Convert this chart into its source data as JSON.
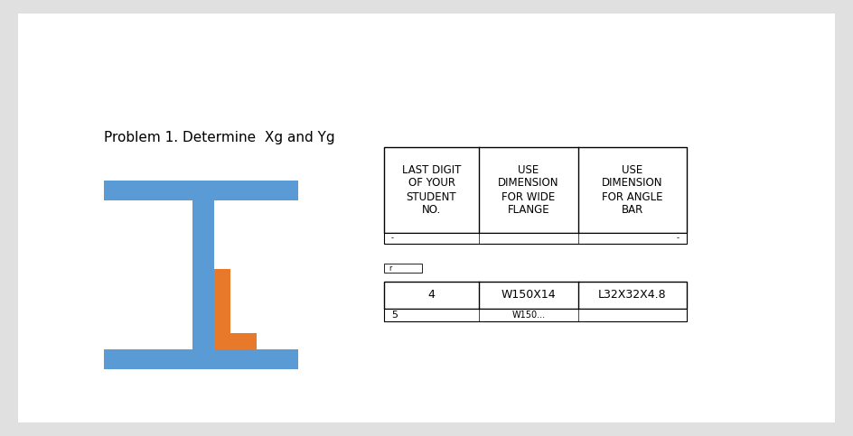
{
  "title": "Problem 1. Determine  Xg and Yg",
  "background_color": "#e0e0e0",
  "paper_color": "#ffffff",
  "steel_color": "#5b9bd5",
  "angle_color": "#e8782a",
  "table_header": [
    "LAST DIGIT\nOF YOUR\nSTUDENT\nNO.",
    "USE\nDIMENSION\nFOR WIDE\nFLANGE",
    "USE\nDIMENSION\nFOR ANGLE\nBAR"
  ],
  "table_row4": [
    "4",
    "W150X14",
    "L32X32X4.8"
  ],
  "table_row5_partial": [
    "5",
    "W150..."
  ],
  "title_fontsize": 11,
  "header_fontsize": 8.5,
  "row_fontsize": 9
}
